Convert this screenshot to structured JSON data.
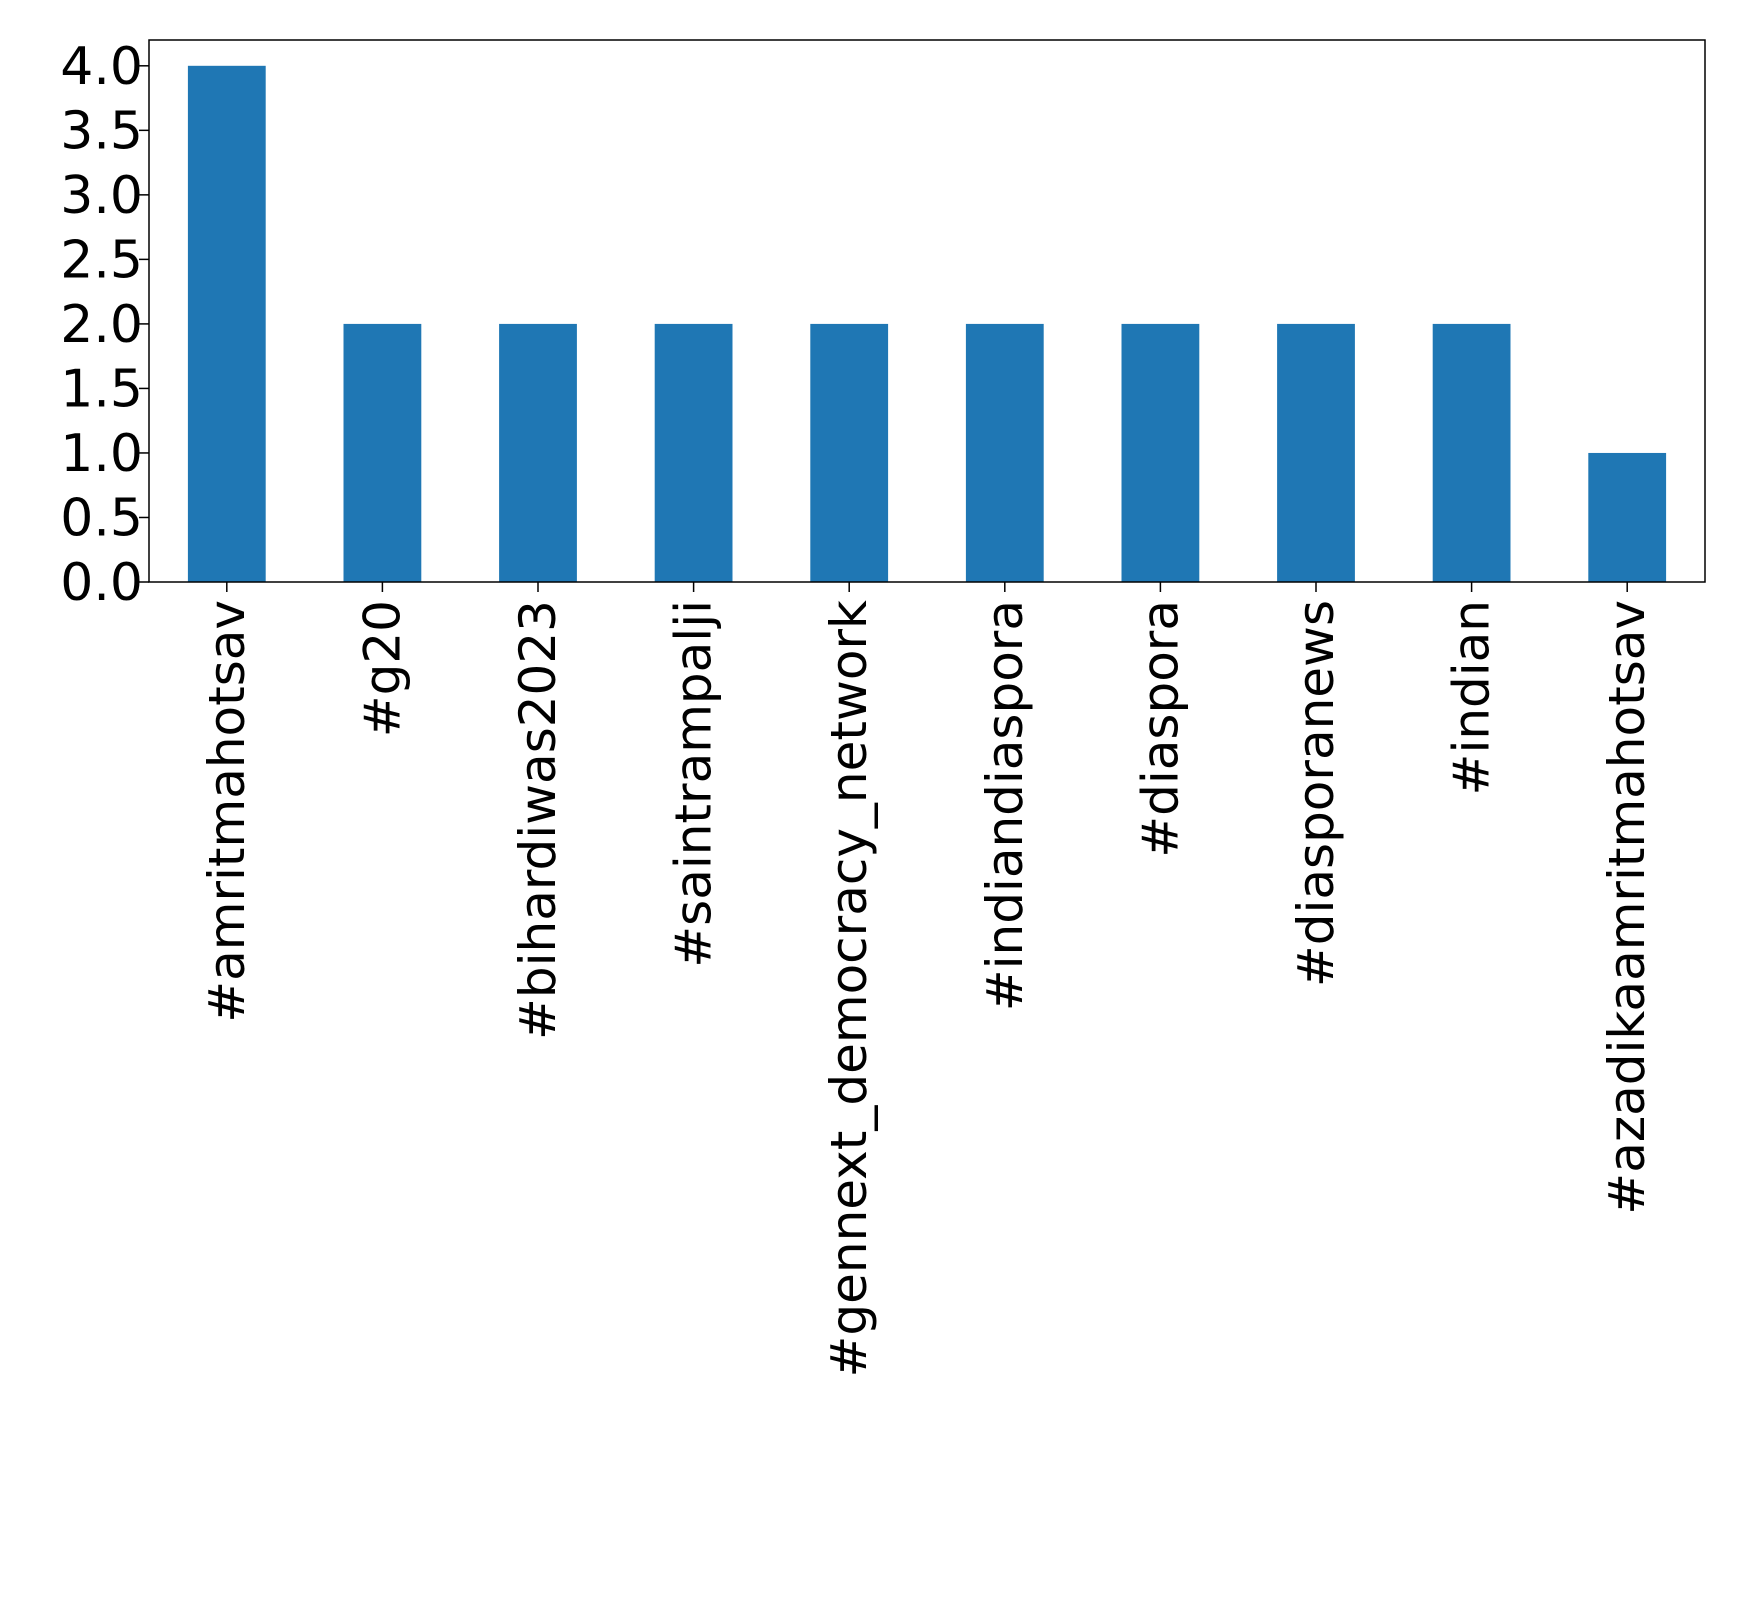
{
  "chart_data": {
    "type": "bar",
    "title": "",
    "xlabel": "",
    "ylabel": "",
    "categories": [
      "#amritmahotsav",
      "#g20",
      "#bihardiwas2023",
      "#saintrampalji",
      "#gennext_democracy_network",
      "#indiandiaspora",
      "#diaspora",
      "#diasporanews",
      "#indian",
      "#azadikaamritmahotsav"
    ],
    "values": [
      4,
      2,
      2,
      2,
      2,
      2,
      2,
      2,
      2,
      1
    ],
    "ylim": [
      0,
      4.2
    ],
    "yticks": [
      "0.0",
      "0.5",
      "1.0",
      "1.5",
      "2.0",
      "2.5",
      "3.0",
      "3.5",
      "4.0"
    ],
    "grid": false,
    "legend": "none",
    "bar_color": "#1f77b4"
  }
}
